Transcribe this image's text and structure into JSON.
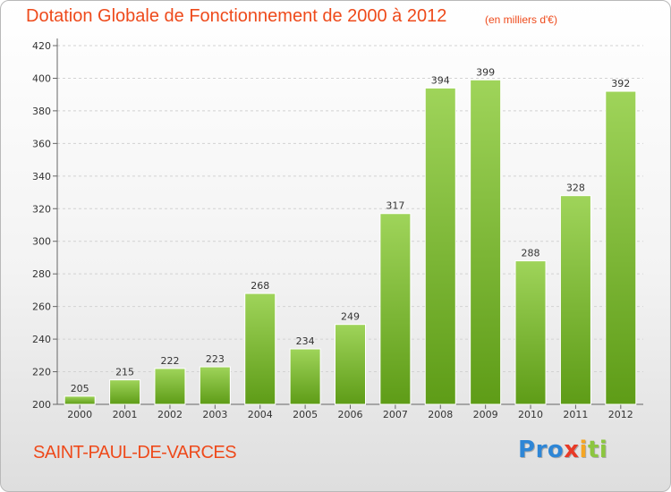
{
  "header": {
    "title": "Dotation Globale de Fonctionnement de 2000 à 2012",
    "subtitle": "(en milliers d'€)"
  },
  "footer": {
    "commune": "SAINT-PAUL-DE-VARCES",
    "logo_letters": [
      {
        "char": "P",
        "color": "#2e86d6"
      },
      {
        "char": "r",
        "color": "#2e86d6"
      },
      {
        "char": "o",
        "color": "#2e86d6"
      },
      {
        "char": "x",
        "color": "#e83a27"
      },
      {
        "char": "i",
        "color": "#f5a623"
      },
      {
        "char": "t",
        "color": "#8cc63f"
      },
      {
        "char": "i",
        "color": "#8cc63f"
      }
    ]
  },
  "colors": {
    "title": "#ee4a1b",
    "bar_top": "#9fd45a",
    "bar_bottom": "#5e9c17",
    "grid": "#d2d2d2"
  },
  "chart_data": {
    "type": "bar",
    "title": "Dotation Globale de Fonctionnement de 2000 à 2012",
    "subtitle": "(en milliers d'€)",
    "xlabel": "",
    "ylabel": "",
    "categories": [
      "2000",
      "2001",
      "2002",
      "2003",
      "2004",
      "2005",
      "2006",
      "2007",
      "2008",
      "2009",
      "2010",
      "2011",
      "2012"
    ],
    "values": [
      205,
      215,
      222,
      223,
      268,
      234,
      249,
      317,
      394,
      399,
      288,
      328,
      392
    ],
    "ylim": [
      200,
      420
    ],
    "yticks": [
      200,
      220,
      240,
      260,
      280,
      300,
      320,
      340,
      360,
      380,
      400,
      420
    ],
    "grid": true,
    "data_labels": true
  }
}
